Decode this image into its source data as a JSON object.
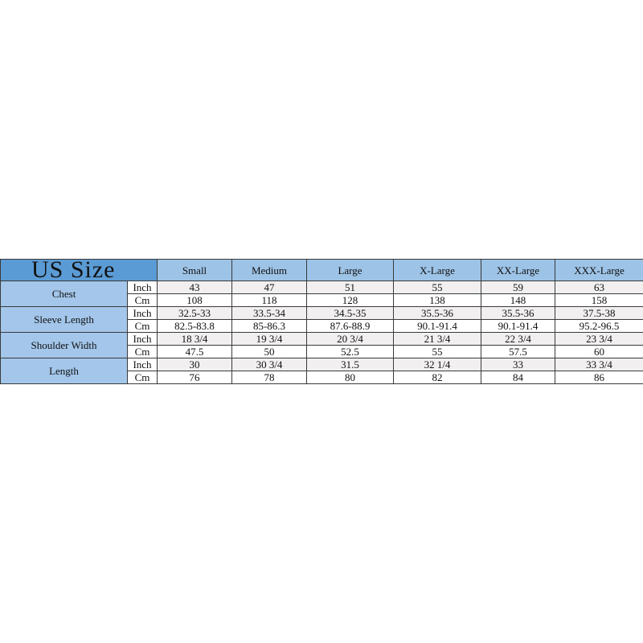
{
  "title": "US Size",
  "sizes": [
    "Small",
    "Medium",
    "Large",
    "X-Large",
    "XX-Large",
    "XXX-Large"
  ],
  "measurements": [
    {
      "label": "Chest",
      "rows": [
        {
          "unit": "Inch",
          "values": [
            "43",
            "47",
            "51",
            "55",
            "59",
            "63"
          ]
        },
        {
          "unit": "Cm",
          "values": [
            "108",
            "118",
            "128",
            "138",
            "148",
            "158"
          ]
        }
      ]
    },
    {
      "label": "Sleeve Length",
      "rows": [
        {
          "unit": "Inch",
          "values": [
            "32.5-33",
            "33.5-34",
            "34.5-35",
            "35.5-36",
            "35.5-36",
            "37.5-38"
          ]
        },
        {
          "unit": "Cm",
          "values": [
            "82.5-83.8",
            "85-86.3",
            "87.6-88.9",
            "90.1-91.4",
            "90.1-91.4",
            "95.2-96.5"
          ]
        }
      ]
    },
    {
      "label": "Shoulder Width",
      "rows": [
        {
          "unit": "Inch",
          "values": [
            "18 3/4",
            "19 3/4",
            "20 3/4",
            "21 3/4",
            "22 3/4",
            "23 3/4"
          ]
        },
        {
          "unit": "Cm",
          "values": [
            "47.5",
            "50",
            "52.5",
            "55",
            "57.5",
            "60"
          ]
        }
      ]
    },
    {
      "label": "Length",
      "rows": [
        {
          "unit": "Inch",
          "values": [
            "30",
            "30 3/4",
            "31.5",
            "32 1/4",
            "33",
            "33 3/4"
          ]
        },
        {
          "unit": "Cm",
          "values": [
            "76",
            "78",
            "80",
            "82",
            "84",
            "86"
          ]
        }
      ]
    }
  ],
  "colors": {
    "title_bg": "#5b9bd5",
    "header_bg": "#9dc3e6",
    "label_bg": "#a3c6ea",
    "stripe": "#f1efef"
  }
}
